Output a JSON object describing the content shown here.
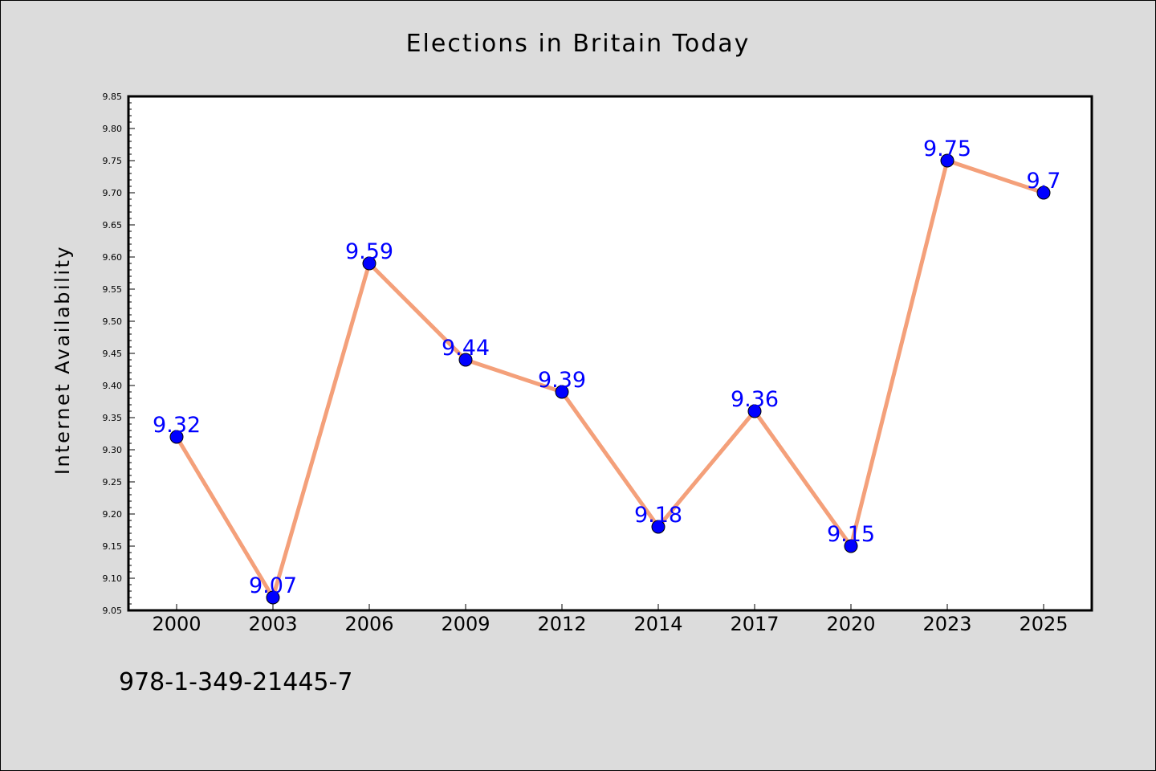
{
  "chart_data": {
    "type": "line",
    "title": "Elections in Britain Today",
    "xlabel": "",
    "ylabel": "Internet Availability",
    "categories": [
      "2000",
      "2003",
      "2006",
      "2009",
      "2012",
      "2014",
      "2017",
      "2020",
      "2023",
      "2025"
    ],
    "series": [
      {
        "values": [
          9.32,
          9.07,
          9.59,
          9.44,
          9.39,
          9.18,
          9.36,
          9.15,
          9.75,
          9.7
        ],
        "value_labels": [
          "9.32",
          "9.07",
          "9.59",
          "9.44",
          "9.39",
          "9.18",
          "9.36",
          "9.15",
          "9.75",
          "9.7"
        ]
      }
    ],
    "ylim": [
      9.05,
      9.85
    ],
    "yticks": [
      "9.05",
      "9.10",
      "9.15",
      "9.20",
      "9.25",
      "9.30",
      "9.35",
      "9.40",
      "9.45",
      "9.50",
      "9.55",
      "9.60",
      "9.65",
      "9.70",
      "9.75",
      "9.80",
      "9.85"
    ],
    "grid": false,
    "legend": "none",
    "colors": {
      "line": "#f4a07a",
      "marker": "#0000ff",
      "data_label": "#0000ff",
      "background": "#dcdcdc",
      "plot_background": "#ffffff"
    }
  },
  "caption": "978-1-349-21445-7"
}
